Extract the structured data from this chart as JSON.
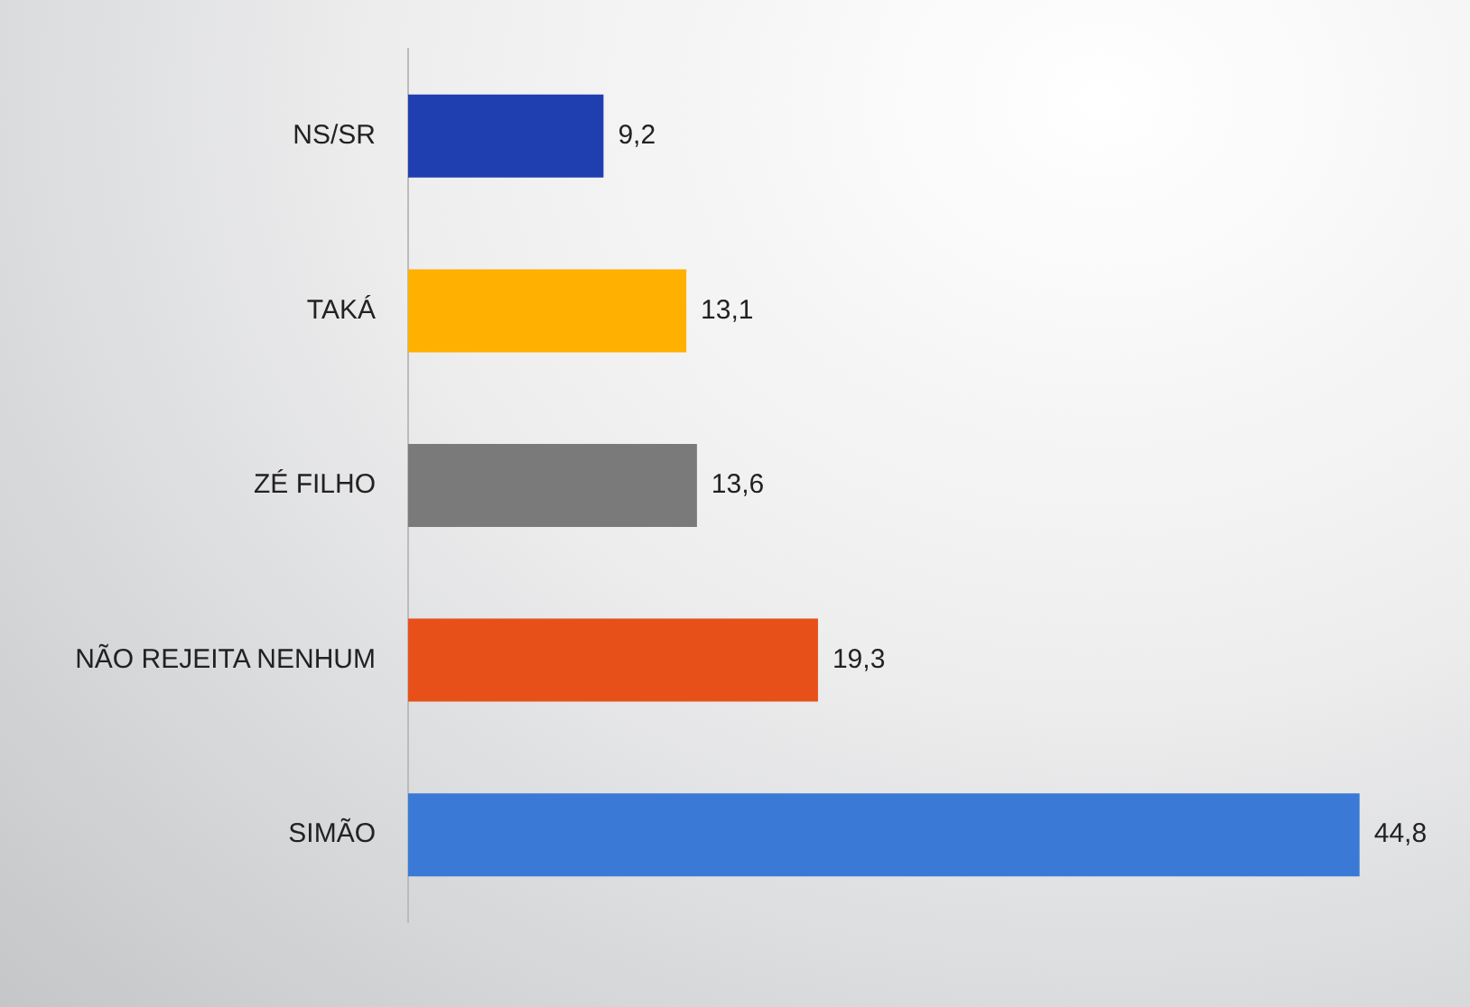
{
  "chart_data": {
    "type": "bar",
    "orientation": "horizontal",
    "categories": [
      "NS/SR",
      "TAKÁ",
      "ZÉ FILHO",
      "NÃO REJEITA NENHUM",
      "SIMÃO"
    ],
    "values": [
      9.2,
      13.1,
      13.6,
      19.3,
      44.8
    ],
    "colors": [
      "#1f3fb0",
      "#ffb000",
      "#7a7a7a",
      "#e8501a",
      "#3a7ad6"
    ],
    "value_labels": [
      "9,2",
      "13,1",
      "13,6",
      "19,3",
      "44,8"
    ],
    "grid": false
  }
}
